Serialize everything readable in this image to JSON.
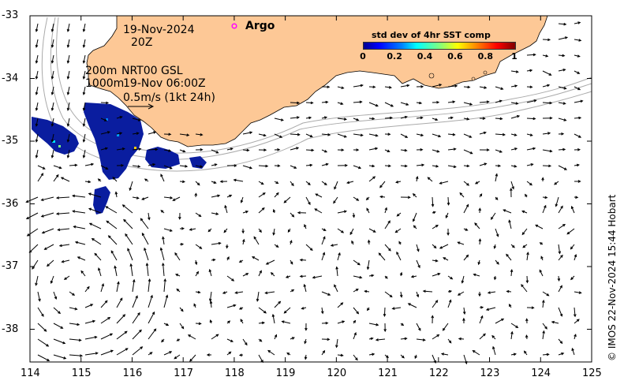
{
  "map": {
    "date": "19-Nov-2024",
    "time": "20Z",
    "contours_label": "200m\n1000m",
    "product": "NRT00 GSL",
    "product_time": "19-Nov 06:00Z",
    "scale_label": "0.5m/s (1kt 24h)",
    "argo_label": "Argo",
    "credit": "© IMOS 22-Nov-2024 15:44 Hobart",
    "x_ticks": [
      "114",
      "115",
      "116",
      "117",
      "118",
      "119",
      "120",
      "121",
      "122",
      "123",
      "124",
      "125"
    ],
    "y_ticks": [
      "-33",
      "-34",
      "-35",
      "-36",
      "-37",
      "-38"
    ],
    "colorbar": {
      "title": "std dev of 4hr SST comp",
      "ticks": [
        "0",
        "0.2",
        "0.4",
        "0.6",
        "0.8",
        "1"
      ]
    },
    "colors": {
      "land": "#fdc896",
      "argo": "#ff00ff",
      "sst_patch": "#0a1d9f",
      "contour": "#aaaaaa"
    }
  }
}
